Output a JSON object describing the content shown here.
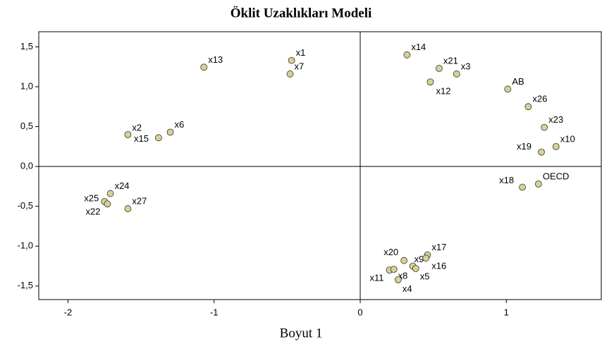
{
  "chart_data": {
    "type": "scatter",
    "title": "Öklit Uzaklıkları Modeli",
    "x_label": "Boyut 1",
    "point_labels": [
      "x13",
      "x1",
      "x7",
      "x14",
      "x21",
      "x3",
      "x12",
      "AB",
      "x26",
      "x23",
      "x10",
      "x19",
      "x18",
      "OECD",
      "x2",
      "x15",
      "x6",
      "x24",
      "x25",
      "x22",
      "x27",
      "x20",
      "x9",
      "x17",
      "x16",
      "x11",
      "x8",
      "x5",
      "x4"
    ],
    "x": [
      -1.07,
      -0.47,
      -0.48,
      0.32,
      0.54,
      0.66,
      0.48,
      1.01,
      1.15,
      1.26,
      1.34,
      1.24,
      1.11,
      1.22,
      -1.59,
      -1.38,
      -1.3,
      -1.71,
      -1.75,
      -1.73,
      -1.59,
      0.3,
      0.36,
      0.46,
      0.45,
      0.2,
      0.23,
      0.38,
      0.26
    ],
    "values": [
      1.245,
      1.33,
      1.16,
      1.4,
      1.23,
      1.16,
      1.06,
      0.97,
      0.75,
      0.49,
      0.25,
      0.18,
      -0.26,
      -0.22,
      0.4,
      0.36,
      0.43,
      -0.34,
      -0.44,
      -0.47,
      -0.53,
      -1.18,
      -1.25,
      -1.11,
      -1.15,
      -1.3,
      -1.29,
      -1.28,
      -1.42
    ],
    "color": "#d9d096",
    "xlim": [
      -2.2,
      1.65
    ],
    "ylim": [
      -1.67,
      1.69
    ],
    "xticks": [
      -2,
      -1,
      0,
      1
    ],
    "yticks": [
      {
        "value": 1.5,
        "label": "1,5"
      },
      {
        "value": 1.0,
        "label": "1,0"
      },
      {
        "value": 0.5,
        "label": "0,5"
      },
      {
        "value": 0.0,
        "label": "0,0"
      },
      {
        "value": -0.5,
        "label": "-0,5"
      },
      {
        "value": -1.0,
        "label": "-1,0"
      },
      {
        "value": -1.5,
        "label": "-1,5"
      }
    ]
  }
}
